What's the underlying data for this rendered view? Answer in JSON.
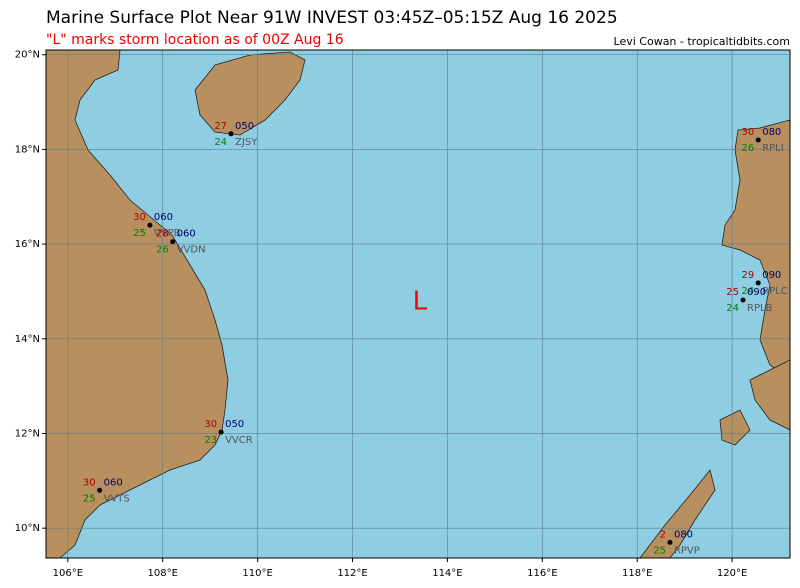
{
  "header": {
    "title": "Marine Surface Plot Near 91W INVEST 03:45Z–05:15Z Aug 16 2025",
    "subtitle": "\"L\" marks storm location as of 00Z Aug 16",
    "credit": "Levi Cowan - tropicaltidbits.com"
  },
  "map": {
    "xlim": [
      105.54,
      121.22
    ],
    "ylim": [
      9.37,
      20.1
    ],
    "xticks": [
      {
        "value": 106,
        "label": "106°E"
      },
      {
        "value": 108,
        "label": "108°E"
      },
      {
        "value": 110,
        "label": "110°E"
      },
      {
        "value": 112,
        "label": "112°E"
      },
      {
        "value": 114,
        "label": "114°E"
      },
      {
        "value": 116,
        "label": "116°E"
      },
      {
        "value": 118,
        "label": "118°E"
      },
      {
        "value": 120,
        "label": "120°E"
      }
    ],
    "yticks": [
      {
        "value": 10,
        "label": "10°N"
      },
      {
        "value": 12,
        "label": "12°N"
      },
      {
        "value": 14,
        "label": "14°N"
      },
      {
        "value": 16,
        "label": "16°N"
      },
      {
        "value": 18,
        "label": "18°N"
      },
      {
        "value": 20,
        "label": "20°N"
      }
    ],
    "storm": {
      "label": "L",
      "lon": 113.42,
      "lat": 14.78
    },
    "stations": [
      {
        "id": "ZJSY",
        "lon": 109.44,
        "lat": 18.33,
        "temp": "27",
        "dew": "24",
        "pressure": "050"
      },
      {
        "id": "RPLI",
        "lon": 120.55,
        "lat": 18.2,
        "temp": "30",
        "dew": "26",
        "pressure": "080"
      },
      {
        "id": "VVPB",
        "lon": 107.73,
        "lat": 16.4,
        "temp": "30",
        "dew": "25",
        "pressure": "060"
      },
      {
        "id": "VVDN",
        "lon": 108.21,
        "lat": 16.05,
        "temp": "28",
        "dew": "26",
        "pressure": "060"
      },
      {
        "id": "RPLC",
        "lon": 120.55,
        "lat": 15.18,
        "temp": "29",
        "dew": "24",
        "pressure": "090"
      },
      {
        "id": "RPLB",
        "lon": 120.23,
        "lat": 14.82,
        "temp": "25",
        "dew": "24",
        "pressure": "090"
      },
      {
        "id": "VVCR",
        "lon": 109.23,
        "lat": 12.03,
        "temp": "30",
        "dew": "23",
        "pressure": "050"
      },
      {
        "id": "VVTS",
        "lon": 106.67,
        "lat": 10.8,
        "temp": "30",
        "dew": "25",
        "pressure": "060"
      },
      {
        "id": "RPVP",
        "lon": 118.69,
        "lat": 9.7,
        "temp": "2",
        "dew": "25",
        "pressure": "080"
      }
    ]
  }
}
